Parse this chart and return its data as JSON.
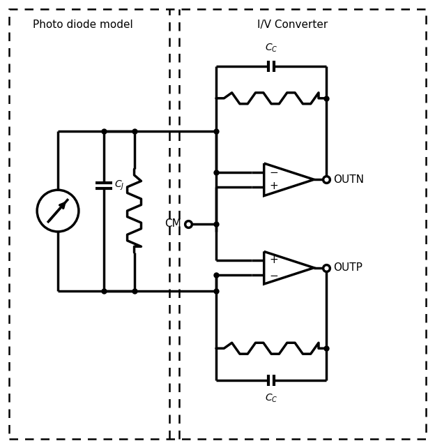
{
  "title_left": "Photo diode model",
  "title_right": "I/V Converter",
  "label_CM": "CM",
  "label_OUTN": "OUTN",
  "label_OUTP": "OUTP",
  "line_color": "#000000",
  "bg_color": "#ffffff",
  "lw": 2.5
}
